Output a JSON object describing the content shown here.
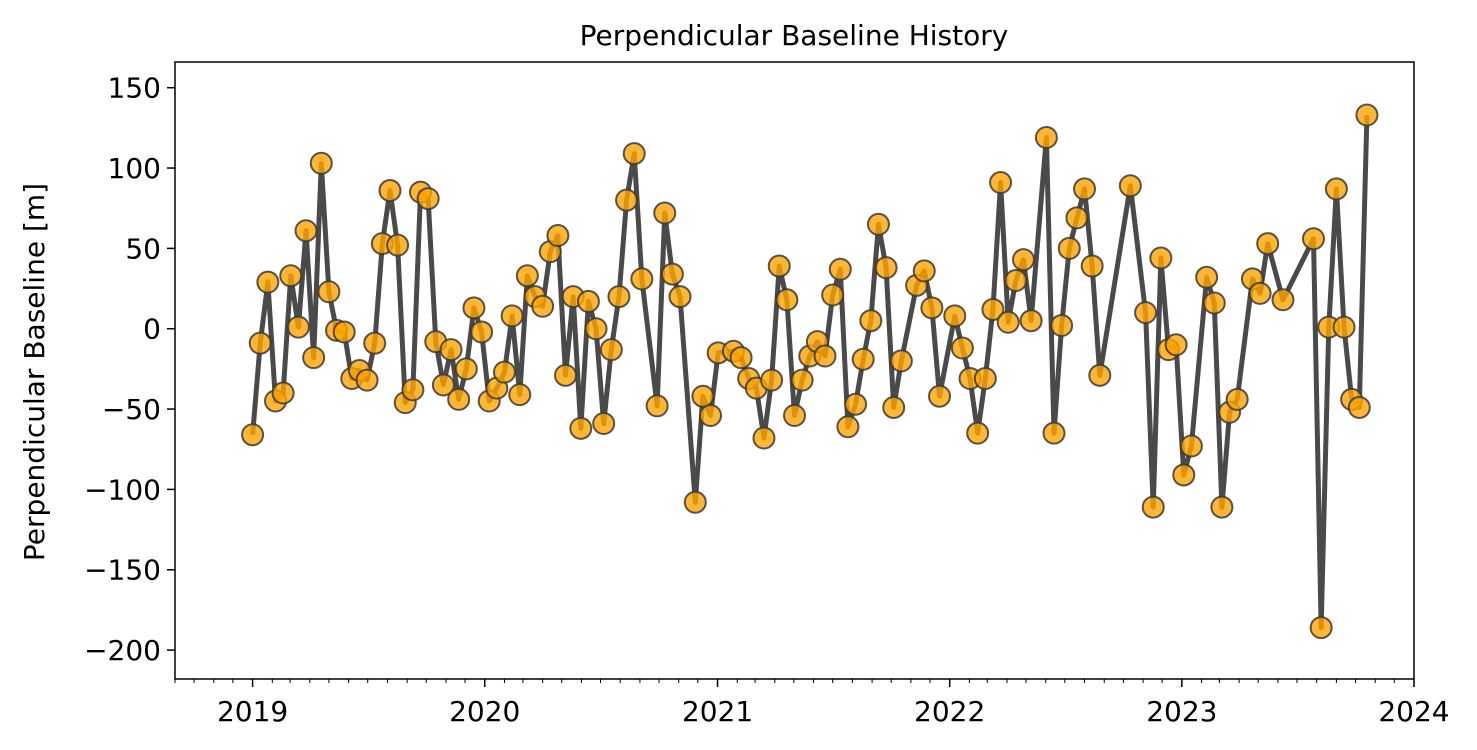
{
  "chart_data": {
    "type": "line",
    "title": "Perpendicular Baseline History",
    "xlabel": "",
    "ylabel": "Perpendicular Baseline [m]",
    "x_ticks": [
      "2019",
      "2020",
      "2021",
      "2022",
      "2023",
      "2024"
    ],
    "y_ticks": [
      "150",
      "100",
      "50",
      "0",
      "−50",
      "−100",
      "−150",
      "−200"
    ],
    "y_tick_values": [
      150,
      100,
      50,
      0,
      -50,
      -100,
      -150,
      -200
    ],
    "xlim": [
      "2018-09-01",
      "2024-01-01"
    ],
    "ylim": [
      -218,
      166
    ],
    "grid": false,
    "legend": "none",
    "colors": {
      "line": "#4a4a4a",
      "marker_fill": "#FFA500",
      "marker_edge": "#3a3a3a"
    },
    "series": [
      {
        "values": [
          [
            "2019-01-01",
            -66
          ],
          [
            "2019-01-13",
            -9
          ],
          [
            "2019-01-25",
            29
          ],
          [
            "2019-02-06",
            -45
          ],
          [
            "2019-02-18",
            -40
          ],
          [
            "2019-03-02",
            33
          ],
          [
            "2019-03-14",
            1
          ],
          [
            "2019-03-26",
            61
          ],
          [
            "2019-04-07",
            -18
          ],
          [
            "2019-04-19",
            103
          ],
          [
            "2019-05-01",
            23
          ],
          [
            "2019-05-13",
            -1
          ],
          [
            "2019-05-25",
            -2
          ],
          [
            "2019-06-06",
            -31
          ],
          [
            "2019-06-18",
            -26
          ],
          [
            "2019-06-30",
            -32
          ],
          [
            "2019-07-12",
            -9
          ],
          [
            "2019-07-24",
            53
          ],
          [
            "2019-08-05",
            86
          ],
          [
            "2019-08-17",
            52
          ],
          [
            "2019-08-29",
            -46
          ],
          [
            "2019-09-10",
            -38
          ],
          [
            "2019-09-22",
            85
          ],
          [
            "2019-10-04",
            81
          ],
          [
            "2019-10-16",
            -8
          ],
          [
            "2019-10-28",
            -35
          ],
          [
            "2019-11-09",
            -13
          ],
          [
            "2019-11-21",
            -44
          ],
          [
            "2019-12-03",
            -25
          ],
          [
            "2019-12-15",
            13
          ],
          [
            "2019-12-27",
            -2
          ],
          [
            "2020-01-08",
            -45
          ],
          [
            "2020-01-20",
            -37
          ],
          [
            "2020-02-01",
            -27
          ],
          [
            "2020-02-13",
            8
          ],
          [
            "2020-02-25",
            -41
          ],
          [
            "2020-03-08",
            33
          ],
          [
            "2020-03-20",
            20
          ],
          [
            "2020-04-01",
            14
          ],
          [
            "2020-04-13",
            48
          ],
          [
            "2020-04-25",
            58
          ],
          [
            "2020-05-07",
            -29
          ],
          [
            "2020-05-19",
            20
          ],
          [
            "2020-05-31",
            -62
          ],
          [
            "2020-06-12",
            17
          ],
          [
            "2020-06-24",
            0
          ],
          [
            "2020-07-06",
            -59
          ],
          [
            "2020-07-18",
            -13
          ],
          [
            "2020-07-30",
            20
          ],
          [
            "2020-08-11",
            80
          ],
          [
            "2020-08-23",
            109
          ],
          [
            "2020-09-04",
            31
          ],
          [
            "2020-09-28",
            -48
          ],
          [
            "2020-10-10",
            72
          ],
          [
            "2020-10-22",
            34
          ],
          [
            "2020-11-03",
            20
          ],
          [
            "2020-11-27",
            -108
          ],
          [
            "2020-12-09",
            -42
          ],
          [
            "2020-12-21",
            -54
          ],
          [
            "2021-01-02",
            -15
          ],
          [
            "2021-01-26",
            -14
          ],
          [
            "2021-02-07",
            -18
          ],
          [
            "2021-02-19",
            -31
          ],
          [
            "2021-03-03",
            -37
          ],
          [
            "2021-03-15",
            -68
          ],
          [
            "2021-03-27",
            -32
          ],
          [
            "2021-04-08",
            39
          ],
          [
            "2021-04-20",
            18
          ],
          [
            "2021-05-02",
            -54
          ],
          [
            "2021-05-14",
            -32
          ],
          [
            "2021-05-26",
            -17
          ],
          [
            "2021-06-07",
            -8
          ],
          [
            "2021-06-19",
            -17
          ],
          [
            "2021-07-01",
            21
          ],
          [
            "2021-07-13",
            37
          ],
          [
            "2021-07-25",
            -61
          ],
          [
            "2021-08-06",
            -47
          ],
          [
            "2021-08-18",
            -19
          ],
          [
            "2021-08-30",
            5
          ],
          [
            "2021-09-11",
            65
          ],
          [
            "2021-09-23",
            38
          ],
          [
            "2021-10-05",
            -49
          ],
          [
            "2021-10-17",
            -20
          ],
          [
            "2021-11-10",
            27
          ],
          [
            "2021-11-22",
            36
          ],
          [
            "2021-12-04",
            13
          ],
          [
            "2021-12-16",
            -42
          ],
          [
            "2022-01-09",
            8
          ],
          [
            "2022-01-21",
            -12
          ],
          [
            "2022-02-02",
            -31
          ],
          [
            "2022-02-14",
            -65
          ],
          [
            "2022-02-26",
            -31
          ],
          [
            "2022-03-10",
            12
          ],
          [
            "2022-03-22",
            91
          ],
          [
            "2022-04-03",
            4
          ],
          [
            "2022-04-15",
            30
          ],
          [
            "2022-04-27",
            43
          ],
          [
            "2022-05-09",
            5
          ],
          [
            "2022-06-02",
            119
          ],
          [
            "2022-06-14",
            -65
          ],
          [
            "2022-06-26",
            2
          ],
          [
            "2022-07-08",
            50
          ],
          [
            "2022-07-20",
            69
          ],
          [
            "2022-08-01",
            87
          ],
          [
            "2022-08-13",
            39
          ],
          [
            "2022-08-25",
            -29
          ],
          [
            "2022-10-12",
            89
          ],
          [
            "2022-11-05",
            10
          ],
          [
            "2022-11-17",
            -111
          ],
          [
            "2022-11-29",
            44
          ],
          [
            "2022-12-11",
            -13
          ],
          [
            "2022-12-23",
            -10
          ],
          [
            "2023-01-04",
            -91
          ],
          [
            "2023-01-16",
            -73
          ],
          [
            "2023-02-09",
            32
          ],
          [
            "2023-02-21",
            16
          ],
          [
            "2023-03-05",
            -111
          ],
          [
            "2023-03-17",
            -52
          ],
          [
            "2023-03-29",
            -44
          ],
          [
            "2023-04-22",
            31
          ],
          [
            "2023-05-04",
            22
          ],
          [
            "2023-05-16",
            53
          ],
          [
            "2023-06-09",
            18
          ],
          [
            "2023-07-27",
            56
          ],
          [
            "2023-08-08",
            -186
          ],
          [
            "2023-08-20",
            1
          ],
          [
            "2023-09-01",
            87
          ],
          [
            "2023-09-13",
            1
          ],
          [
            "2023-09-25",
            -44
          ],
          [
            "2023-10-07",
            -49
          ],
          [
            "2023-10-19",
            133
          ]
        ]
      }
    ]
  }
}
